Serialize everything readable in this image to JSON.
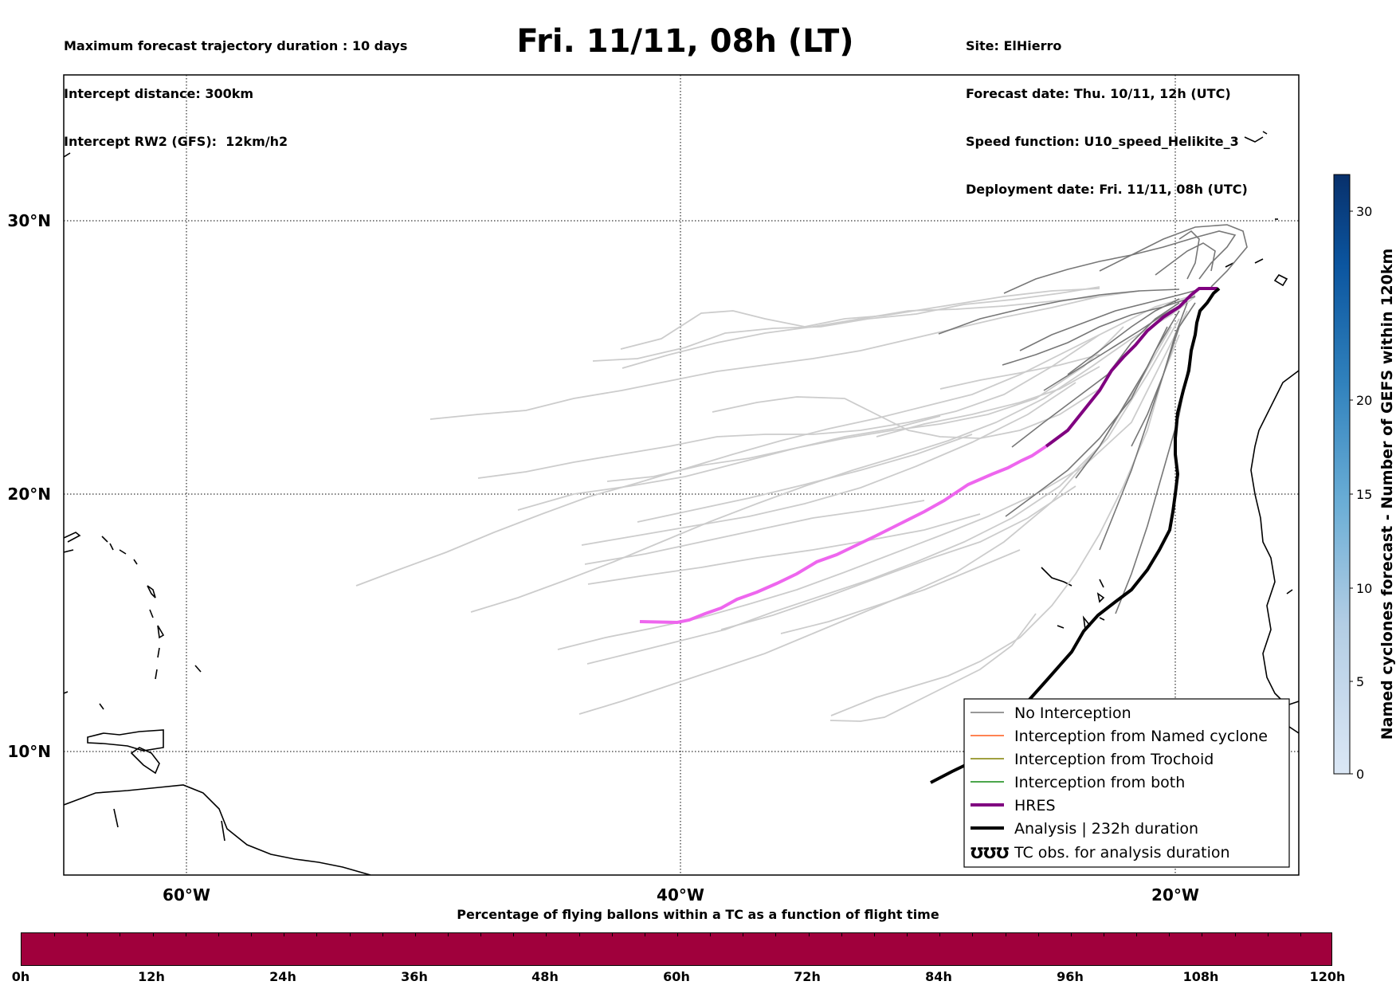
{
  "header": {
    "left_lines": [
      "Maximum forecast trajectory duration : 10 days",
      "Intercept distance: 300km",
      "Intercept RW2 (GFS):  12km/h2"
    ],
    "title": "Fri. 11/11, 08h (LT)",
    "right_lines": [
      "Site: ElHierro",
      "Forecast date: Thu. 10/11, 12h (UTC)",
      "Speed function: U10_speed_Helikite_3",
      "Deployment date: Fri. 11/11, 08h (UTC)"
    ]
  },
  "map": {
    "lon_range": [
      -65,
      -15
    ],
    "lat_range": [
      5,
      34.3
    ],
    "lon_labels": [
      "60°W",
      "40°W",
      "20°W"
    ],
    "lat_labels": [
      "30°N",
      "20°N",
      "10°N"
    ],
    "grid": "dotted",
    "colors": {
      "ensemble_light": "#cccccc",
      "ensemble_dark": "#777777",
      "hres_dark": "#800080",
      "hres_light": "#ee66ee",
      "analysis": "#000000",
      "coast": "#000000"
    }
  },
  "legend": {
    "position": "lower-right",
    "items": [
      {
        "label": "No Interception",
        "color": "#777777",
        "style": "thin"
      },
      {
        "label": "Interception from Named cyclone",
        "color": "#ff5a1a",
        "style": "thin"
      },
      {
        "label": "Interception from Trochoid",
        "color": "#808000",
        "style": "thin"
      },
      {
        "label": "Interception from both",
        "color": "#118811",
        "style": "thin"
      },
      {
        "label": "HRES",
        "color": "#800080",
        "style": "thick"
      },
      {
        "label": "Analysis | 232h duration",
        "color": "#000000",
        "style": "thick"
      },
      {
        "label": "TC obs. for analysis duration",
        "color": "#000000",
        "style": "symbol"
      }
    ],
    "tc_symbol": "℧℧℧"
  },
  "colorbar": {
    "label": "Named cyclones forecast - Number of GEFS within 120km",
    "ticks": [
      "0",
      "5",
      "10",
      "15",
      "20",
      "30"
    ],
    "colormap": "Blues"
  },
  "percentage_bar": {
    "title": "Percentage of flying ballons within a TC as a function of flight time",
    "ticks": [
      "0h",
      "12h",
      "24h",
      "36h",
      "48h",
      "60h",
      "72h",
      "84h",
      "96h",
      "108h",
      "120h"
    ],
    "fill_color": "#a0003c"
  }
}
